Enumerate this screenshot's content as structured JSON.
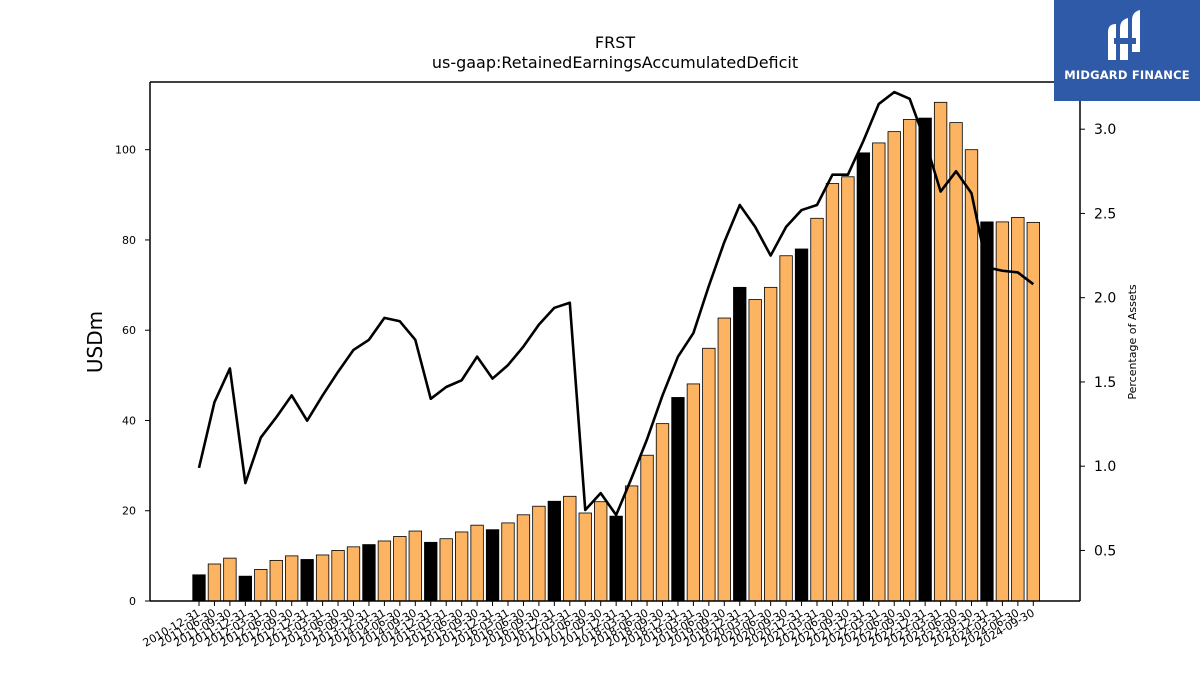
{
  "chart_data": {
    "type": "bar",
    "title": "FRST",
    "subtitle": "us-gaap:RetainedEarningsAccumulatedDeficit",
    "ylabel": "USDm",
    "y2label": "Percentage of Assets",
    "ylim": [
      0,
      115
    ],
    "y2lim": [
      0.2,
      3.28
    ],
    "yticks": [
      0,
      20,
      40,
      60,
      80,
      100
    ],
    "y2ticks": [
      "0.5",
      "1.0",
      "1.5",
      "2.0",
      "2.5",
      "3.0"
    ],
    "categories": [
      "2010-12-31",
      "2011-06-30",
      "2011-09-30",
      "2011-12-31",
      "2012-03-31",
      "2012-06-30",
      "2012-09-30",
      "2012-12-31",
      "2013-03-31",
      "2013-06-30",
      "2013-09-30",
      "2013-12-31",
      "2014-03-31",
      "2014-06-30",
      "2014-09-30",
      "2014-12-31",
      "2015-03-31",
      "2015-06-30",
      "2015-09-30",
      "2015-12-31",
      "2016-03-31",
      "2016-06-30",
      "2016-09-30",
      "2016-12-31",
      "2017-03-31",
      "2017-06-30",
      "2017-09-30",
      "2017-12-31",
      "2018-03-31",
      "2018-06-30",
      "2018-09-30",
      "2018-12-31",
      "2019-03-31",
      "2019-06-30",
      "2019-09-30",
      "2019-12-31",
      "2020-03-31",
      "2020-06-30",
      "2020-09-30",
      "2020-12-31",
      "2021-03-31",
      "2021-06-30",
      "2021-09-30",
      "2021-12-31",
      "2022-03-31",
      "2022-06-30",
      "2022-09-30",
      "2022-12-31",
      "2023-03-31",
      "2023-06-30",
      "2023-09-30",
      "2023-12-31",
      "2024-03-31",
      "2024-06-30",
      "2024-09-30"
    ],
    "tick_labels": [
      "2010-12-31",
      "2011-06-30",
      "2011-09-30",
      "2011-12-31",
      "2012-03-31",
      "2012-06-30",
      "2012-09-30",
      "2012-12-31",
      "2013-03-31",
      "2013-06-30",
      "2013-09-30",
      "2013-12-31",
      "2014-03-31",
      "2014-06-30",
      "2014-09-30",
      "2014-12-31",
      "2015-03-31",
      "2015-06-30",
      "2015-09-30",
      "2015-12-31",
      "2016-03-31",
      "2016-06-30",
      "2016-09-30",
      "2016-12-31",
      "2017-03-31",
      "2017-06-30",
      "2017-09-30",
      "2017-12-31",
      "2018-03-31",
      "2018-06-30",
      "2018-09-30",
      "2018-12-31",
      "2019-03-31",
      "2019-06-30",
      "2019-09-30",
      "2019-12-31",
      "2020-03-31",
      "2020-06-30",
      "2020-09-30",
      "2020-12-31",
      "2021-03-31",
      "2021-06-30",
      "2021-09-30",
      "2021-12-31",
      "2022-03-31",
      "2022-06-30",
      "2022-09-30",
      "2022-12-31",
      "2023-03-31",
      "2023-06-30",
      "2023-09-30",
      "2023-12-31",
      "2024-03-31",
      "2024-06-30",
      "2024-09-30"
    ],
    "series": [
      {
        "values": [
          5.8,
          8.2,
          9.5,
          5.5,
          7.0,
          9.0,
          10.0,
          9.2,
          10.2,
          11.2,
          12.0,
          12.5,
          13.3,
          14.3,
          15.5,
          13.0,
          13.8,
          15.3,
          16.8,
          15.8,
          17.3,
          19.1,
          21.0,
          22.1,
          23.2,
          19.5,
          22.0,
          18.8,
          25.5,
          32.3,
          39.3,
          45.1,
          48.1,
          56.0,
          62.7,
          69.5,
          66.8,
          69.5,
          76.5,
          78.0,
          84.8,
          92.5,
          94.0,
          99.3,
          101.5,
          104.0,
          106.7,
          107.0,
          110.5,
          106.0,
          100.0,
          84.0,
          84.0,
          85.0,
          83.9
        ]
      },
      {
        "values": [
          0.99,
          1.38,
          1.58,
          0.9,
          1.17,
          1.29,
          1.42,
          1.27,
          1.42,
          1.56,
          1.69,
          1.75,
          1.88,
          1.86,
          1.75,
          1.4,
          1.47,
          1.51,
          1.65,
          1.52,
          1.6,
          1.71,
          1.84,
          1.94,
          1.97,
          0.74,
          0.84,
          0.71,
          0.93,
          1.16,
          1.42,
          1.65,
          1.79,
          2.07,
          2.33,
          2.55,
          2.42,
          2.25,
          2.42,
          2.52,
          2.55,
          2.73,
          2.73,
          2.93,
          3.15,
          3.22,
          3.18,
          2.93,
          2.63,
          2.75,
          2.62,
          2.18,
          2.16,
          2.15,
          2.08
        ]
      }
    ],
    "highlight_color": "#000000",
    "bar_color": "#fdb462",
    "line_color": "#000000"
  },
  "logo": {
    "name": "MIDGARD FINANCE",
    "bg_color": "#2f5aa8"
  }
}
